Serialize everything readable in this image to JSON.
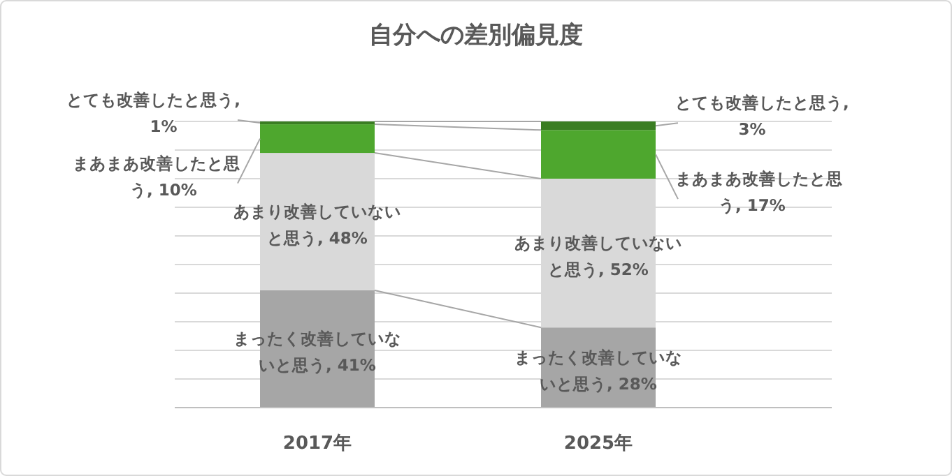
{
  "chart_data": {
    "type": "bar",
    "stacked": true,
    "title": "自分への差別偏見度",
    "categories": [
      "2017年",
      "2025年"
    ],
    "ylim": [
      0,
      100
    ],
    "yticks": [
      {
        "value": 0,
        "label": null
      },
      {
        "value": 10,
        "label": null
      },
      {
        "value": 20,
        "label": null
      },
      {
        "value": 30,
        "label": null
      },
      {
        "value": 40,
        "label": null
      },
      {
        "value": 50,
        "label": null
      },
      {
        "value": 60,
        "label": null
      },
      {
        "value": 70,
        "label": null
      },
      {
        "value": 80,
        "label": null
      },
      {
        "value": 90,
        "label": null
      },
      {
        "value": 100,
        "label": null
      }
    ],
    "grid": "y",
    "tick_labels": "x",
    "series": [
      {
        "color": "#a6a6a6",
        "values": [
          41,
          28
        ],
        "value_labels": [
          "まったく改善していないと思う, 41%",
          "まったく改善していないと思う, 28%"
        ]
      },
      {
        "color": "#d9d9d9",
        "values": [
          48,
          52
        ],
        "value_labels": [
          "あまり改善していないと思う, 48%",
          "あまり改善していないと思う, 52%"
        ]
      },
      {
        "color": "#4ea72e",
        "values": [
          10,
          17
        ],
        "value_labels": [
          "まあまあ改善したと思う, 10%",
          "まあまあ改善したと思う, 17%"
        ]
      },
      {
        "color": "#3a7d22",
        "values": [
          1,
          3
        ],
        "value_labels": [
          "とても改善したと思う, 1%",
          "とても改善したと思う, 3%"
        ]
      }
    ]
  }
}
